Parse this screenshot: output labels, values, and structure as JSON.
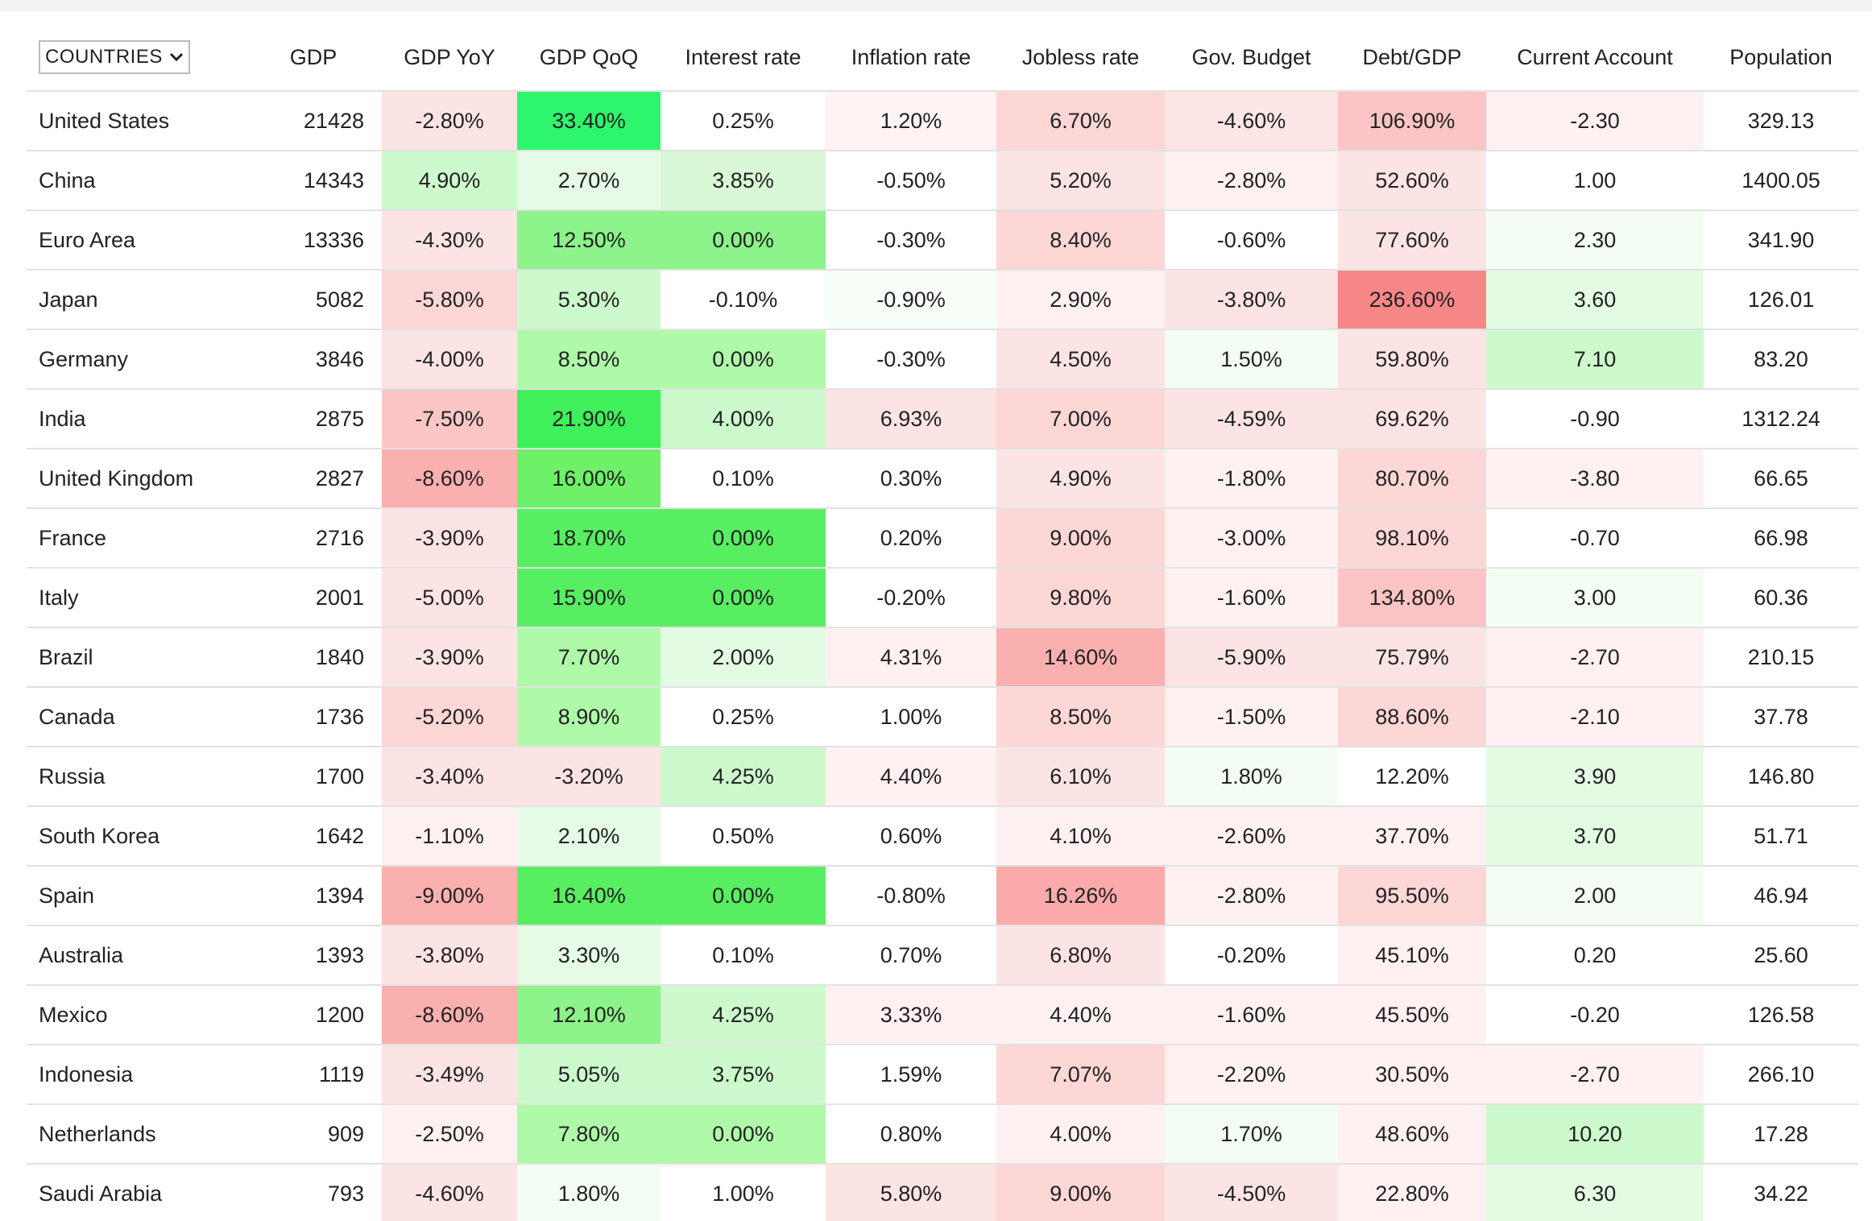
{
  "table": {
    "columns": [
      "COUNTRIES",
      "GDP",
      "GDP YoY",
      "GDP QoQ",
      "Interest rate",
      "Inflation rate",
      "Jobless rate",
      "Gov. Budget",
      "Debt/GDP",
      "Current Account",
      "Population"
    ],
    "rows": [
      [
        "United States",
        "21428",
        "-2.80%",
        "33.40%",
        "0.25%",
        "1.20%",
        "6.70%",
        "-4.60%",
        "106.90%",
        "-2.30",
        "329.13"
      ],
      [
        "China",
        "14343",
        "4.90%",
        "2.70%",
        "3.85%",
        "-0.50%",
        "5.20%",
        "-2.80%",
        "52.60%",
        "1.00",
        "1400.05"
      ],
      [
        "Euro Area",
        "13336",
        "-4.30%",
        "12.50%",
        "0.00%",
        "-0.30%",
        "8.40%",
        "-0.60%",
        "77.60%",
        "2.30",
        "341.90"
      ],
      [
        "Japan",
        "5082",
        "-5.80%",
        "5.30%",
        "-0.10%",
        "-0.90%",
        "2.90%",
        "-3.80%",
        "236.60%",
        "3.60",
        "126.01"
      ],
      [
        "Germany",
        "3846",
        "-4.00%",
        "8.50%",
        "0.00%",
        "-0.30%",
        "4.50%",
        "1.50%",
        "59.80%",
        "7.10",
        "83.20"
      ],
      [
        "India",
        "2875",
        "-7.50%",
        "21.90%",
        "4.00%",
        "6.93%",
        "7.00%",
        "-4.59%",
        "69.62%",
        "-0.90",
        "1312.24"
      ],
      [
        "United Kingdom",
        "2827",
        "-8.60%",
        "16.00%",
        "0.10%",
        "0.30%",
        "4.90%",
        "-1.80%",
        "80.70%",
        "-3.80",
        "66.65"
      ],
      [
        "France",
        "2716",
        "-3.90%",
        "18.70%",
        "0.00%",
        "0.20%",
        "9.00%",
        "-3.00%",
        "98.10%",
        "-0.70",
        "66.98"
      ],
      [
        "Italy",
        "2001",
        "-5.00%",
        "15.90%",
        "0.00%",
        "-0.20%",
        "9.80%",
        "-1.60%",
        "134.80%",
        "3.00",
        "60.36"
      ],
      [
        "Brazil",
        "1840",
        "-3.90%",
        "7.70%",
        "2.00%",
        "4.31%",
        "14.60%",
        "-5.90%",
        "75.79%",
        "-2.70",
        "210.15"
      ],
      [
        "Canada",
        "1736",
        "-5.20%",
        "8.90%",
        "0.25%",
        "1.00%",
        "8.50%",
        "-1.50%",
        "88.60%",
        "-2.10",
        "37.78"
      ],
      [
        "Russia",
        "1700",
        "-3.40%",
        "-3.20%",
        "4.25%",
        "4.40%",
        "6.10%",
        "1.80%",
        "12.20%",
        "3.90",
        "146.80"
      ],
      [
        "South Korea",
        "1642",
        "-1.10%",
        "2.10%",
        "0.50%",
        "0.60%",
        "4.10%",
        "-2.60%",
        "37.70%",
        "3.70",
        "51.71"
      ],
      [
        "Spain",
        "1394",
        "-9.00%",
        "16.40%",
        "0.00%",
        "-0.80%",
        "16.26%",
        "-2.80%",
        "95.50%",
        "2.00",
        "46.94"
      ],
      [
        "Australia",
        "1393",
        "-3.80%",
        "3.30%",
        "0.10%",
        "0.70%",
        "6.80%",
        "-0.20%",
        "45.10%",
        "0.20",
        "25.60"
      ],
      [
        "Mexico",
        "1200",
        "-8.60%",
        "12.10%",
        "4.25%",
        "3.33%",
        "4.40%",
        "-1.60%",
        "45.50%",
        "-0.20",
        "126.58"
      ],
      [
        "Indonesia",
        "1119",
        "-3.49%",
        "5.05%",
        "3.75%",
        "1.59%",
        "7.07%",
        "-2.20%",
        "30.50%",
        "-2.70",
        "266.10"
      ],
      [
        "Netherlands",
        "909",
        "-2.50%",
        "7.80%",
        "0.00%",
        "0.80%",
        "4.00%",
        "1.70%",
        "48.60%",
        "10.20",
        "17.28"
      ],
      [
        "Saudi Arabia",
        "793",
        "-4.60%",
        "1.80%",
        "1.00%",
        "5.80%",
        "9.00%",
        "-4.50%",
        "22.80%",
        "6.30",
        "34.22"
      ]
    ],
    "colors": [
      [
        "#ffffff",
        "#ffffff",
        "#fde4e4",
        "#2ef56e",
        "#ffffff",
        "#fff3f3",
        "#fdd6d6",
        "#fde6e6",
        "#fcc4c4",
        "#fff1f1",
        "#ffffff"
      ],
      [
        "#ffffff",
        "#ffffff",
        "#ccfacc",
        "#e6fbe6",
        "#d8f8d8",
        "#ffffff",
        "#fde4e4",
        "#fff1f1",
        "#fde4e4",
        "#ffffff",
        "#ffffff"
      ],
      [
        "#ffffff",
        "#ffffff",
        "#fde4e4",
        "#8cf48a",
        "#8cf48a",
        "#ffffff",
        "#fdd6d6",
        "#ffffff",
        "#fde4e4",
        "#f3fdf3",
        "#ffffff"
      ],
      [
        "#ffffff",
        "#ffffff",
        "#fdd6d6",
        "#ccfacc",
        "#ffffff",
        "#f8fef8",
        "#fff1f1",
        "#fde4e4",
        "#f88888",
        "#e3fbe3",
        "#ffffff"
      ],
      [
        "#ffffff",
        "#ffffff",
        "#fde4e4",
        "#aefaa8",
        "#aefaa8",
        "#ffffff",
        "#fde4e4",
        "#f3fdf3",
        "#fde4e4",
        "#ccfacc",
        "#ffffff"
      ],
      [
        "#ffffff",
        "#ffffff",
        "#fcc6c6",
        "#3ef05a",
        "#ccfacc",
        "#fde4e4",
        "#fdd6d6",
        "#fde4e4",
        "#fde4e4",
        "#ffffff",
        "#ffffff"
      ],
      [
        "#ffffff",
        "#ffffff",
        "#fbb0b0",
        "#6ef068",
        "#ffffff",
        "#ffffff",
        "#fde4e4",
        "#fff1f1",
        "#fdd6d6",
        "#fff1f1",
        "#ffffff"
      ],
      [
        "#ffffff",
        "#ffffff",
        "#fde4e4",
        "#58ee62",
        "#58ee62",
        "#ffffff",
        "#fdd6d6",
        "#fff1f1",
        "#fdd6d6",
        "#ffffff",
        "#ffffff"
      ],
      [
        "#ffffff",
        "#ffffff",
        "#fde4e4",
        "#58ee62",
        "#58ee62",
        "#ffffff",
        "#fdd6d6",
        "#fff1f1",
        "#fcc4c4",
        "#f3fdf3",
        "#ffffff"
      ],
      [
        "#ffffff",
        "#ffffff",
        "#fde4e4",
        "#aefaa8",
        "#e3fbe3",
        "#fff1f1",
        "#fbb0b0",
        "#fde4e4",
        "#fde4e4",
        "#fff1f1",
        "#ffffff"
      ],
      [
        "#ffffff",
        "#ffffff",
        "#fdd6d6",
        "#aefaa8",
        "#ffffff",
        "#ffffff",
        "#fdd6d6",
        "#fff1f1",
        "#fdd6d6",
        "#fff1f1",
        "#ffffff"
      ],
      [
        "#ffffff",
        "#ffffff",
        "#fde4e4",
        "#fde4e4",
        "#ccfacc",
        "#fff1f1",
        "#fde4e4",
        "#f3fdf3",
        "#ffffff",
        "#e3fbe3",
        "#ffffff"
      ],
      [
        "#ffffff",
        "#ffffff",
        "#fff1f1",
        "#e6fbe6",
        "#ffffff",
        "#ffffff",
        "#fff1f1",
        "#fff1f1",
        "#fff1f1",
        "#e3fbe3",
        "#ffffff"
      ],
      [
        "#ffffff",
        "#ffffff",
        "#fbb0b0",
        "#58ee62",
        "#58ee62",
        "#ffffff",
        "#fbaaaa",
        "#fff1f1",
        "#fdd6d6",
        "#f3fdf3",
        "#ffffff"
      ],
      [
        "#ffffff",
        "#ffffff",
        "#fde4e4",
        "#e6fbe6",
        "#ffffff",
        "#ffffff",
        "#fde4e4",
        "#ffffff",
        "#fff1f1",
        "#ffffff",
        "#ffffff"
      ],
      [
        "#ffffff",
        "#ffffff",
        "#fbb0b0",
        "#8cf48a",
        "#ccfacc",
        "#fff1f1",
        "#fff1f1",
        "#fff1f1",
        "#fff1f1",
        "#ffffff",
        "#ffffff"
      ],
      [
        "#ffffff",
        "#ffffff",
        "#fde4e4",
        "#ccfacc",
        "#ccfacc",
        "#ffffff",
        "#fdd6d6",
        "#fff1f1",
        "#fff1f1",
        "#fff1f1",
        "#ffffff"
      ],
      [
        "#ffffff",
        "#ffffff",
        "#fff1f1",
        "#aefaa8",
        "#aefaa8",
        "#ffffff",
        "#fff1f1",
        "#f3fdf3",
        "#fff1f1",
        "#ccfacc",
        "#ffffff"
      ],
      [
        "#ffffff",
        "#ffffff",
        "#fde4e4",
        "#f3fdf3",
        "#ffffff",
        "#fde4e4",
        "#fdd6d6",
        "#fde4e4",
        "#fff1f1",
        "#e3fbe3",
        "#ffffff"
      ]
    ]
  }
}
